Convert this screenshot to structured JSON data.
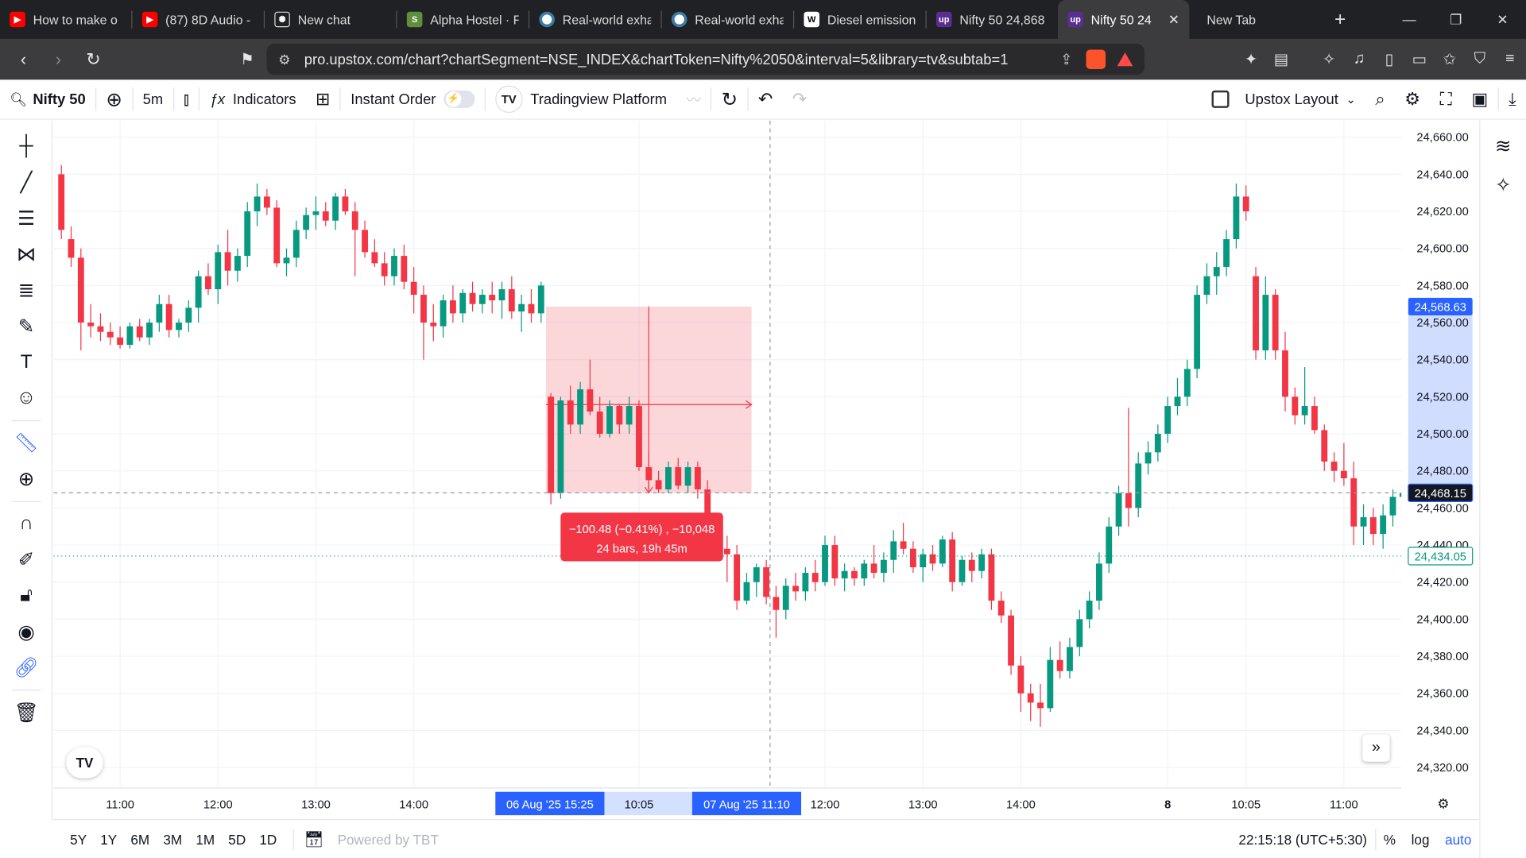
{
  "browser": {
    "tabs": [
      {
        "title": "How to make o",
        "favicon_color": "#ff0000",
        "icon": "youtube-icon"
      },
      {
        "title": "(87) 8D Audio -",
        "favicon_color": "#ff0000",
        "icon": "youtube-icon"
      },
      {
        "title": "New chat",
        "favicon_color": "#202124",
        "icon": "chatgpt-icon"
      },
      {
        "title": "Alpha Hostel · F",
        "favicon_color": "#5e8e3e",
        "icon": "shopify-icon"
      },
      {
        "title": "Real-world exha",
        "favicon_color": "#ffffff",
        "icon": "globe-icon"
      },
      {
        "title": "Real-world exha",
        "favicon_color": "#ffffff",
        "icon": "globe-icon"
      },
      {
        "title": "Diesel emission",
        "favicon_color": "#ffffff",
        "icon": "wikipedia-icon"
      },
      {
        "title": "Nifty 50 24,868",
        "favicon_color": "#5a2d91",
        "icon": "upstox-icon"
      },
      {
        "title": "Nifty 50 24",
        "favicon_color": "#5a2d91",
        "icon": "upstox-icon",
        "active": true
      },
      {
        "title": "New Tab",
        "favicon_color": "",
        "icon": ""
      }
    ],
    "url": "pro.upstox.com/chart?chartSegment=NSE_INDEX&chartToken=Nifty%2050&interval=5&library=tv&subtab=1"
  },
  "toolbar": {
    "symbol": "Nifty 50",
    "interval": "5m",
    "indicators": "Indicators",
    "instant_order": "Instant Order",
    "platform": "Tradingview Platform",
    "layout": "Upstox Layout"
  },
  "bottom": {
    "ranges": [
      "5Y",
      "1Y",
      "6M",
      "3M",
      "1M",
      "5D",
      "1D"
    ],
    "powered": "Powered by TBT",
    "clock": "22:15:18 (UTC+5:30)",
    "percent": "%",
    "log": "log",
    "auto": "auto"
  },
  "measure": {
    "line1": "−100.48 (−0.41%) , −10,048",
    "line2": "24 bars, 19h 45m"
  },
  "chart_data": {
    "type": "candlestick",
    "symbol": "Nifty 50",
    "interval": "5m",
    "ylim": [
      24310,
      24670
    ],
    "y_ticks": [
      "24,320.00",
      "24,340.00",
      "24,360.00",
      "24,380.00",
      "24,400.00",
      "24,420.00",
      "24,440.00",
      "24,460.00",
      "24,480.00",
      "24,500.00",
      "24,520.00",
      "24,540.00",
      "24,560.00",
      "24,580.00",
      "24,600.00",
      "24,620.00",
      "24,640.00",
      "24,660.00"
    ],
    "x_labels": [
      {
        "label": "11:00",
        "bar": 6
      },
      {
        "label": "12:00",
        "bar": 16
      },
      {
        "label": "13:00",
        "bar": 26
      },
      {
        "label": "14:00",
        "bar": 36
      },
      {
        "label": "10:05",
        "bar": 59
      },
      {
        "label": "12:00",
        "bar": 78
      },
      {
        "label": "13:00",
        "bar": 88
      },
      {
        "label": "14:00",
        "bar": 98
      },
      {
        "label": "8",
        "bar": 113
      },
      {
        "label": "10:05",
        "bar": 121
      },
      {
        "label": "11:00",
        "bar": 131
      }
    ],
    "range_start": {
      "label": "06 Aug '25   15:25",
      "bar": 50
    },
    "range_end": {
      "label": "07 Aug '25   11:10",
      "bar": 70
    },
    "crosshair_price": "24,468.15",
    "crosshair_value": 24468.15,
    "price_high_label": "24,568.63",
    "price_high_value": 24568.63,
    "last_price_label": "24,434.05",
    "last_price_value": 24434.05,
    "measure_range": {
      "from_bar": 50,
      "to_bar": 70,
      "from_price": 24568.63,
      "to_price": 24468.15
    },
    "candles": [
      [
        24640,
        24645,
        24605,
        24610
      ],
      [
        24605,
        24612,
        24590,
        24595
      ],
      [
        24595,
        24600,
        24545,
        24560
      ],
      [
        24560,
        24570,
        24552,
        24558
      ],
      [
        24558,
        24565,
        24550,
        24555
      ],
      [
        24555,
        24560,
        24548,
        24552
      ],
      [
        24552,
        24558,
        24546,
        24548
      ],
      [
        24548,
        24560,
        24546,
        24558
      ],
      [
        24558,
        24562,
        24550,
        24552
      ],
      [
        24552,
        24562,
        24548,
        24560
      ],
      [
        24560,
        24575,
        24555,
        24570
      ],
      [
        24570,
        24575,
        24552,
        24556
      ],
      [
        24556,
        24562,
        24552,
        24560
      ],
      [
        24560,
        24572,
        24555,
        24568
      ],
      [
        24568,
        24588,
        24560,
        24585
      ],
      [
        24585,
        24592,
        24575,
        24578
      ],
      [
        24578,
        24602,
        24570,
        24598
      ],
      [
        24598,
        24610,
        24580,
        24588
      ],
      [
        24588,
        24600,
        24582,
        24596
      ],
      [
        24596,
        24625,
        24590,
        24620
      ],
      [
        24620,
        24635,
        24612,
        24628
      ],
      [
        24628,
        24632,
        24618,
        24622
      ],
      [
        24622,
        24626,
        24590,
        24592
      ],
      [
        24592,
        24600,
        24585,
        24595
      ],
      [
        24595,
        24615,
        24590,
        24610
      ],
      [
        24610,
        24622,
        24605,
        24618
      ],
      [
        24618,
        24628,
        24610,
        24620
      ],
      [
        24620,
        24625,
        24612,
        24615
      ],
      [
        24615,
        24630,
        24610,
        24628
      ],
      [
        24628,
        24632,
        24618,
        24620
      ],
      [
        24620,
        24625,
        24585,
        24610
      ],
      [
        24610,
        24615,
        24595,
        24598
      ],
      [
        24598,
        24605,
        24590,
        24592
      ],
      [
        24592,
        24598,
        24580,
        24585
      ],
      [
        24585,
        24600,
        24580,
        24596
      ],
      [
        24596,
        24602,
        24578,
        24582
      ],
      [
        24582,
        24590,
        24565,
        24575
      ],
      [
        24575,
        24580,
        24540,
        24560
      ],
      [
        24560,
        24570,
        24550,
        24558
      ],
      [
        24558,
        24575,
        24552,
        24572
      ],
      [
        24572,
        24580,
        24560,
        24565
      ],
      [
        24565,
        24578,
        24560,
        24576
      ],
      [
        24576,
        24582,
        24566,
        24570
      ],
      [
        24570,
        24578,
        24565,
        24575
      ],
      [
        24575,
        24582,
        24565,
        24572
      ],
      [
        24572,
        24582,
        24562,
        24578
      ],
      [
        24578,
        24585,
        24562,
        24566
      ],
      [
        24566,
        24575,
        24555,
        24570
      ],
      [
        24570,
        24578,
        24560,
        24565
      ],
      [
        24565,
        24582,
        24560,
        24580
      ],
      [
        24520,
        24522,
        24462,
        24468
      ],
      [
        24468,
        24520,
        24465,
        24518
      ],
      [
        24518,
        24526,
        24500,
        24505
      ],
      [
        24505,
        24528,
        24500,
        24524
      ],
      [
        24524,
        24540,
        24510,
        24512
      ],
      [
        24512,
        24520,
        24498,
        24500
      ],
      [
        24500,
        24518,
        24498,
        24515
      ],
      [
        24515,
        24516,
        24500,
        24505
      ],
      [
        24505,
        24520,
        24500,
        24515
      ],
      [
        24515,
        24518,
        24480,
        24482
      ],
      [
        24482,
        24490,
        24470,
        24475
      ],
      [
        24475,
        24480,
        24468,
        24470
      ],
      [
        24470,
        24485,
        24468,
        24482
      ],
      [
        24482,
        24487,
        24470,
        24472
      ],
      [
        24472,
        24485,
        24468,
        24482
      ],
      [
        24482,
        24485,
        24465,
        24470
      ],
      [
        24470,
        24475,
        24440,
        24445
      ],
      [
        24445,
        24450,
        24432,
        24438
      ],
      [
        24438,
        24445,
        24420,
        24435
      ],
      [
        24435,
        24440,
        24405,
        24410
      ],
      [
        24410,
        24425,
        24408,
        24420
      ],
      [
        24420,
        24430,
        24412,
        24428
      ],
      [
        24428,
        24432,
        24408,
        24412
      ],
      [
        24412,
        24418,
        24390,
        24405
      ],
      [
        24405,
        24422,
        24400,
        24418
      ],
      [
        24418,
        24425,
        24410,
        24415
      ],
      [
        24415,
        24428,
        24410,
        24425
      ],
      [
        24425,
        24432,
        24415,
        24420
      ],
      [
        24420,
        24445,
        24418,
        24440
      ],
      [
        24440,
        24445,
        24418,
        24422
      ],
      [
        24422,
        24430,
        24415,
        24426
      ],
      [
        24426,
        24428,
        24418,
        24422
      ],
      [
        24422,
        24432,
        24418,
        24430
      ],
      [
        24430,
        24440,
        24422,
        24425
      ],
      [
        24425,
        24436,
        24420,
        24432
      ],
      [
        24432,
        24448,
        24425,
        24442
      ],
      [
        24442,
        24452,
        24435,
        24438
      ],
      [
        24438,
        24442,
        24425,
        24428
      ],
      [
        24428,
        24438,
        24420,
        24435
      ],
      [
        24435,
        24440,
        24426,
        24430
      ],
      [
        24430,
        24445,
        24428,
        24443
      ],
      [
        24443,
        24447,
        24415,
        24420
      ],
      [
        24420,
        24434,
        24418,
        24432
      ],
      [
        24432,
        24436,
        24420,
        24426
      ],
      [
        24426,
        24438,
        24422,
        24435
      ],
      [
        24435,
        24438,
        24405,
        24410
      ],
      [
        24410,
        24415,
        24398,
        24402
      ],
      [
        24402,
        24405,
        24370,
        24375
      ],
      [
        24375,
        24380,
        24350,
        24360
      ],
      [
        24360,
        24365,
        24345,
        24355
      ],
      [
        24355,
        24365,
        24342,
        24352
      ],
      [
        24352,
        24385,
        24350,
        24378
      ],
      [
        24378,
        24388,
        24368,
        24372
      ],
      [
        24372,
        24390,
        24368,
        24385
      ],
      [
        24385,
        24405,
        24380,
        24400
      ],
      [
        24400,
        24415,
        24395,
        24410
      ],
      [
        24410,
        24436,
        24405,
        24430
      ],
      [
        24430,
        24455,
        24425,
        24450
      ],
      [
        24450,
        24472,
        24445,
        24468
      ],
      [
        24468,
        24514,
        24450,
        24460
      ],
      [
        24460,
        24490,
        24455,
        24484
      ],
      [
        24484,
        24496,
        24478,
        24490
      ],
      [
        24490,
        24505,
        24485,
        24500
      ],
      [
        24500,
        24520,
        24495,
        24515
      ],
      [
        24515,
        24530,
        24510,
        24520
      ],
      [
        24520,
        24540,
        24515,
        24535
      ],
      [
        24535,
        24580,
        24530,
        24575
      ],
      [
        24575,
        24592,
        24570,
        24585
      ],
      [
        24585,
        24598,
        24575,
        24590
      ],
      [
        24590,
        24610,
        24585,
        24605
      ],
      [
        24605,
        24635,
        24600,
        24628
      ],
      [
        24628,
        24634,
        24615,
        24620
      ],
      [
        24585,
        24590,
        24540,
        24545
      ],
      [
        24545,
        24585,
        24540,
        24575
      ],
      [
        24575,
        24578,
        24540,
        24545
      ],
      [
        24545,
        24555,
        24512,
        24520
      ],
      [
        24520,
        24525,
        24505,
        24510
      ],
      [
        24510,
        24536,
        24505,
        24515
      ],
      [
        24515,
        24520,
        24500,
        24502
      ],
      [
        24502,
        24505,
        24480,
        24485
      ],
      [
        24485,
        24490,
        24474,
        24480
      ],
      [
        24480,
        24495,
        24472,
        24476
      ],
      [
        24476,
        24485,
        24440,
        24450
      ],
      [
        24450,
        24462,
        24440,
        24455
      ],
      [
        24455,
        24460,
        24440,
        24446
      ],
      [
        24446,
        24462,
        24438,
        24456
      ],
      [
        24456,
        24470,
        24450,
        24466
      ],
      [
        24466,
        24480,
        24445,
        24468
      ],
      [
        24468,
        24470,
        24432,
        24435
      ],
      [
        24435,
        24445,
        24425,
        24430
      ],
      [
        24430,
        24440,
        24418,
        24422
      ],
      [
        24422,
        24436,
        24418,
        24434
      ],
      [
        24434,
        24436,
        24410,
        24415
      ],
      [
        24415,
        24432,
        24408,
        24428
      ],
      [
        24428,
        24436,
        24420,
        24432
      ],
      [
        24432,
        24448,
        24428,
        24444
      ],
      [
        24444,
        24450,
        24425,
        24428
      ],
      [
        24428,
        24440,
        24422,
        24432
      ],
      [
        24432,
        24442,
        24420,
        24425
      ],
      [
        24425,
        24434,
        24420,
        24430
      ],
      [
        24430,
        24440,
        24422,
        24434
      ]
    ]
  }
}
